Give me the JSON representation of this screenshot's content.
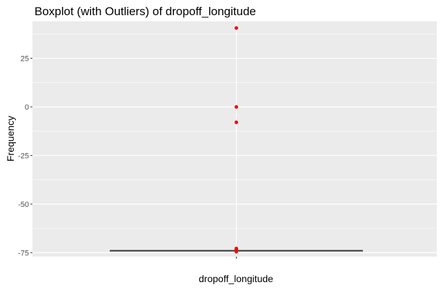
{
  "chart_data": {
    "type": "boxplot",
    "title": "Boxplot (with Outliers) of  dropoff_longitude",
    "xlabel": "dropoff_longitude",
    "ylabel": "Frequency",
    "categories": [
      "dropoff_longitude"
    ],
    "y_ticks": [
      25,
      0,
      -25,
      -50,
      -75
    ],
    "y_tick_labels": [
      "25",
      "0",
      "-25",
      "-50",
      "-75"
    ],
    "ylim": [
      -77,
      44
    ],
    "grid": true,
    "box": {
      "q1": -73.99,
      "median": -73.98,
      "q3": -73.96,
      "whisker_low": -74.03,
      "whisker_high": -73.92
    },
    "outliers": [
      40.6,
      0,
      -7.9,
      -72.8,
      -73.3,
      -73.5,
      -74.3,
      -74.5
    ],
    "outlier_color": "#ff0000",
    "panel_background": "#ebebeb",
    "grid_color": "#ffffff"
  }
}
